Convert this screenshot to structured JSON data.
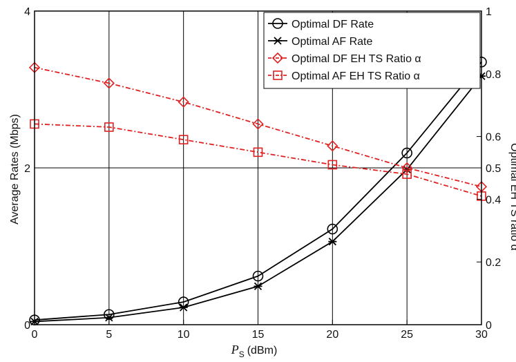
{
  "chart_data": {
    "type": "line",
    "title": "",
    "x": [
      0,
      5,
      10,
      15,
      20,
      25,
      30
    ],
    "xlabel": "P",
    "xlabel_sub": "S",
    "xlabel_unit": "(dBm)",
    "xlim": [
      0,
      30
    ],
    "xticks": [
      "0",
      "5",
      "10",
      "15",
      "20",
      "25",
      "30"
    ],
    "grid": true,
    "legend_position": "top-right",
    "left_axis": {
      "label": "Average Rates (Mbps)",
      "ylim": [
        0,
        4
      ],
      "ticks": [
        "0",
        "2",
        "4"
      ],
      "color": "#000000"
    },
    "right_axis": {
      "label": "Optimal EH TS ratio α",
      "label_visible": "Optimal EH TS ratio α",
      "ylim": [
        0,
        1
      ],
      "ticks": [
        "0",
        "0.2",
        "0.4",
        "0.5",
        "0.6",
        "0.8",
        "1"
      ],
      "color": "#e02020"
    },
    "series": [
      {
        "name": "Optimal DF Rate",
        "axis": "left",
        "color": "#000000",
        "marker": "circle",
        "dash": "solid",
        "values": [
          0.06,
          0.13,
          0.29,
          0.62,
          1.22,
          2.19,
          3.35
        ]
      },
      {
        "name": "Optimal AF Rate",
        "axis": "left",
        "color": "#000000",
        "marker": "star",
        "dash": "solid",
        "values": [
          0.04,
          0.09,
          0.22,
          0.49,
          1.06,
          1.98,
          3.17
        ]
      },
      {
        "name": "Optimal DF EH TS Ratio α",
        "axis": "right",
        "color": "#e02020",
        "marker": "diamond",
        "dash": "dashdot",
        "values": [
          0.82,
          0.77,
          0.71,
          0.64,
          0.57,
          0.5,
          0.44
        ]
      },
      {
        "name": "Optimal AF EH TS Ratio α",
        "axis": "right",
        "color": "#e02020",
        "marker": "square",
        "dash": "dashdot",
        "values": [
          0.64,
          0.63,
          0.59,
          0.55,
          0.51,
          0.48,
          0.41
        ]
      }
    ]
  }
}
